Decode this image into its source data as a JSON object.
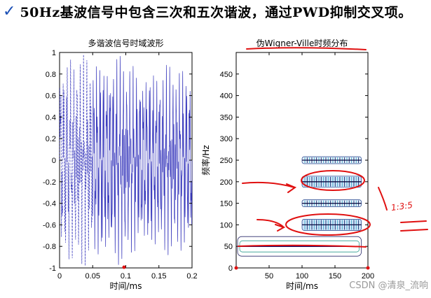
{
  "headline": {
    "check_icon": "checkmark-icon",
    "text": "50Hz基波信号中包含三次和五次谐波，通过PWD抑制交叉项。"
  },
  "watermark": "CSDN @清泉_流响",
  "annotation": {
    "note_text": "1:3:5",
    "accent": "#e01010"
  },
  "chart_data": [
    {
      "type": "line",
      "title": "多谐波信号时域波形",
      "xlabel": "时间/ms",
      "ylabel": "",
      "xlim": [
        0,
        0.2
      ],
      "ylim": [
        -1,
        1
      ],
      "xticks": [
        0,
        0.05,
        0.1,
        0.15,
        0.2
      ],
      "xtick_labels": [
        "0",
        "0.05",
        "0.1",
        "0.15",
        "0.2"
      ],
      "yticks": [
        1,
        0.8,
        0.6,
        0.4,
        0.2,
        0,
        -0.2,
        -0.4,
        -0.6,
        -0.8,
        -1
      ],
      "ytick_labels": [
        "1",
        "0.8",
        "0.6",
        "0.4",
        "0.2",
        "0",
        "-0.2",
        "-0.4",
        "-0.6",
        "-0.8",
        "-1"
      ],
      "series": [
        {
          "name": "multi-harmonic signal",
          "fundamental_hz": 50,
          "harmonics": [
            1,
            3,
            5
          ],
          "color": "#1f1fb4"
        }
      ]
    },
    {
      "type": "heatmap",
      "title": "伪Wigner-Ville时频分布",
      "xlabel": "时间/ms",
      "ylabel": "频率/Hz",
      "xlim": [
        0,
        200
      ],
      "ylim": [
        0,
        500
      ],
      "xticks": [
        50,
        100,
        150,
        200
      ],
      "xtick_labels": [
        "50",
        "100",
        "150",
        "200"
      ],
      "yticks": [
        0,
        50,
        100,
        150,
        200,
        250,
        300,
        350,
        400,
        450
      ],
      "ytick_labels": [
        "0",
        "50",
        "100",
        "150",
        "200",
        "250",
        "300",
        "350",
        "400",
        "450"
      ],
      "bands": [
        {
          "freq_hz": 50,
          "t_start": 0,
          "t_end": 190
        },
        {
          "freq_hz": 100,
          "t_start": 100,
          "t_end": 190,
          "cross_term": true
        },
        {
          "freq_hz": 150,
          "t_start": 100,
          "t_end": 190
        },
        {
          "freq_hz": 200,
          "t_start": 100,
          "t_end": 190,
          "cross_term": true
        },
        {
          "freq_hz": 250,
          "t_start": 100,
          "t_end": 190
        }
      ]
    }
  ]
}
